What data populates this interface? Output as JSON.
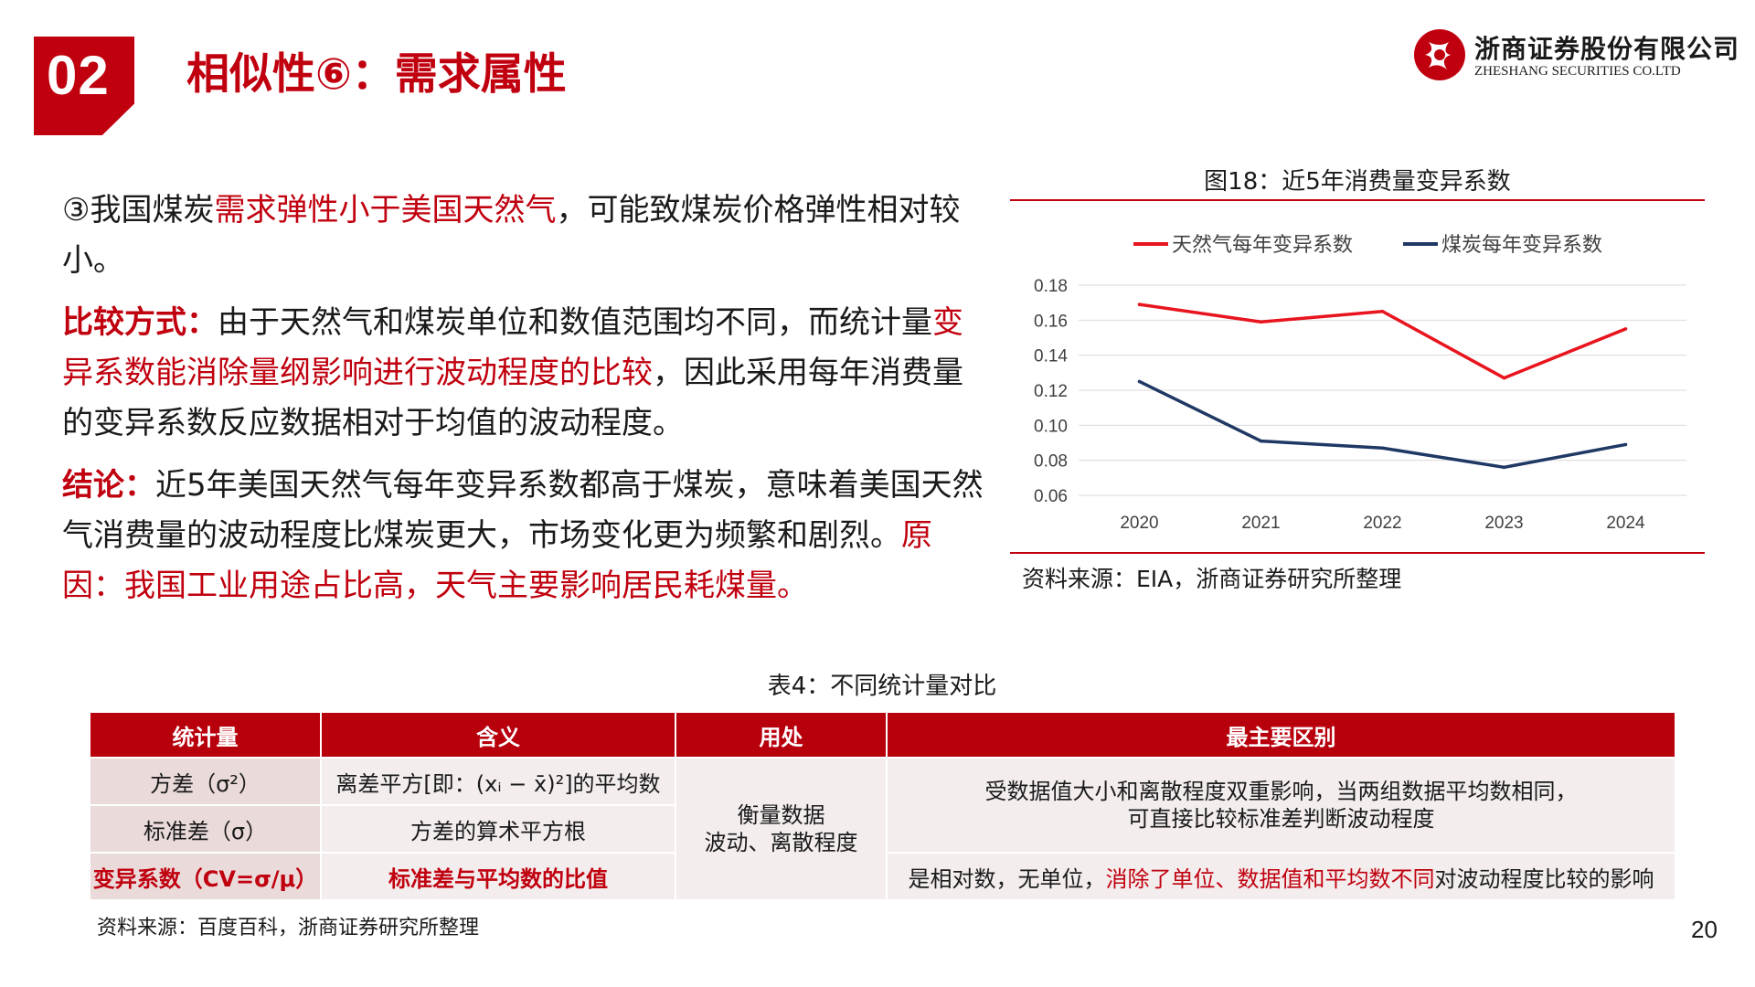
{
  "header": {
    "section_number": "02",
    "title": "相似性⑥：需求属性",
    "logo_cn": "浙商证券股份有限公司",
    "logo_en": "ZHESHANG SECURITIES CO.LTD"
  },
  "body": {
    "p1": {
      "prefix": "③我国煤炭",
      "highlight": "需求弹性小于美国天然气",
      "suffix": "，可能致煤炭价格弹性相对较小。"
    },
    "p2": {
      "label": "比较方式：",
      "text1": "由于天然气和煤炭单位和数值范围均不同，而统计量",
      "highlight": "变异系数能消除量纲影响进行波动程度的比较",
      "text2": "，因此采用每年消费量的变异系数反应数据相对于均值的波动程度。"
    },
    "p3": {
      "label": "结论：",
      "text1": "近5年美国天然气每年变异系数都高于煤炭，意味着美国天然气消费量的波动程度比煤炭更大，市场变化更为频繁和剧烈。",
      "highlight": "原因：我国工业用途占比高，天气主要影响居民耗煤量。"
    }
  },
  "chart": {
    "title": "图18：近5年消费量变异系数",
    "source": "资料来源：EIA，浙商证券研究所整理"
  },
  "chart_data": {
    "type": "line",
    "title": "图18：近5年消费量变异系数",
    "x": [
      "2020",
      "2021",
      "2022",
      "2023",
      "2024"
    ],
    "series": [
      {
        "name": "天然气每年变异系数",
        "color": "#e8141e",
        "values": [
          0.169,
          0.159,
          0.165,
          0.127,
          0.155
        ]
      },
      {
        "name": "煤炭每年变异系数",
        "color": "#1f3864",
        "values": [
          0.125,
          0.091,
          0.087,
          0.076,
          0.089
        ]
      }
    ],
    "yticks": [
      "0.06",
      "0.08",
      "0.10",
      "0.12",
      "0.14",
      "0.16",
      "0.18"
    ],
    "ylim": [
      0.06,
      0.18
    ],
    "grid": true,
    "legend": "top"
  },
  "table": {
    "caption": "表4：不同统计量对比",
    "headers": [
      "统计量",
      "含义",
      "用处",
      "最主要区别"
    ],
    "rows": [
      {
        "stat": "方差（σ²）",
        "meaning": "离差平方[即：(xᵢ − x̄)²]的平均数"
      },
      {
        "stat": "标准差（σ）",
        "meaning": "方差的算术平方根"
      },
      {
        "stat": "变异系数（CV=σ/μ）",
        "meaning": "标准差与平均数的比值"
      }
    ],
    "usage_line1": "衡量数据",
    "usage_line2": "波动、离散程度",
    "diff_top_line1": "受数据值大小和离散程度双重影响，当两组数据平均数相同，",
    "diff_top_line2": "可直接比较标准差判断波动程度",
    "diff_bottom_prefix": "是相对数，无单位，",
    "diff_bottom_highlight": "消除了单位、数据值和平均数不同",
    "diff_bottom_suffix": "对波动程度比较的影响",
    "source": "资料来源：百度百科，浙商证券研究所整理"
  },
  "page_number": "20"
}
